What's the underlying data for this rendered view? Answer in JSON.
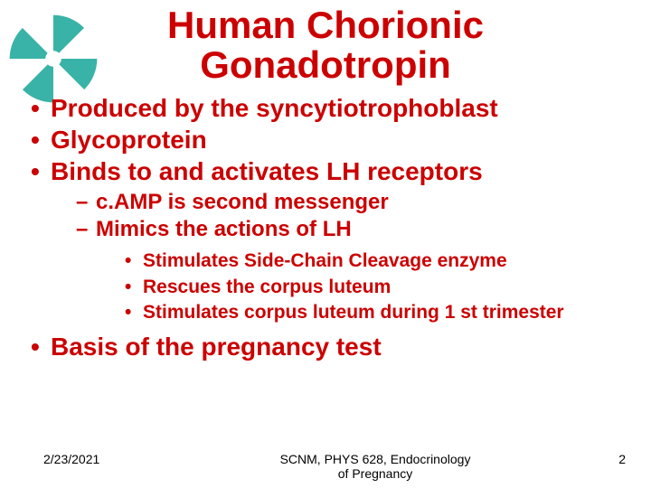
{
  "logo": {
    "color": "#39b3a7",
    "background": "#ffffff"
  },
  "title": {
    "line1": "Human Chorionic",
    "line2": "Gonadotropin",
    "color": "#cc0000",
    "fontsize": 42
  },
  "bullets": {
    "color": "#cc0000",
    "level1_fontsize": 28,
    "level2_fontsize": 24,
    "level3_fontsize": 21,
    "items": [
      {
        "text": "Produced by the syncytiotrophoblast"
      },
      {
        "text": "Glycoprotein"
      },
      {
        "text": "Binds to and activates LH receptors",
        "sub": [
          {
            "text": "c.AMP is second messenger"
          },
          {
            "text": "Mimics the actions of LH",
            "sub": [
              {
                "text": "Stimulates Side-Chain Cleavage enzyme"
              },
              {
                "text": "Rescues the corpus luteum"
              },
              {
                "text": "Stimulates corpus luteum during 1 st trimester"
              }
            ]
          }
        ]
      },
      {
        "text": "Basis of the pregnancy test"
      }
    ]
  },
  "footer": {
    "date": "2/23/2021",
    "center_line1": "SCNM, PHYS 628, Endocrinology",
    "center_line2": "of Pregnancy",
    "page": "2",
    "color": "#000000",
    "fontsize": 14
  }
}
